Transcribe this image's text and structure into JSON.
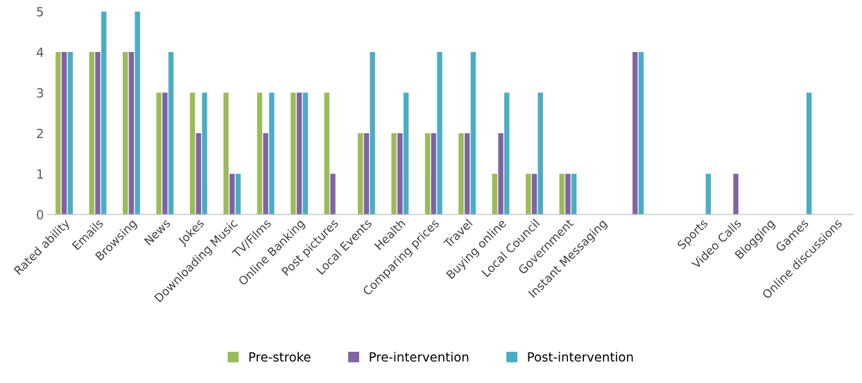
{
  "chart_data": {
    "type": "bar",
    "categories": [
      "Rated ability",
      "Emails",
      "Browsing",
      "News",
      "Jokes",
      "Downloading Music",
      "TV/Films",
      "Online Banking",
      "Post pictures",
      "Local Events",
      "Health",
      "Comparing prices",
      "Travel",
      "Buying online",
      "Local Council",
      "Government",
      "Instant Messaging",
      null,
      null,
      "Sports",
      "Video Calls",
      "Blogging",
      "Games",
      "Online discussions"
    ],
    "series": [
      {
        "name": "Pre-stroke",
        "color": "#9bbb59",
        "values": [
          4,
          4,
          4,
          3,
          3,
          3,
          3,
          3,
          3,
          2,
          2,
          2,
          2,
          1,
          1,
          1,
          0,
          0,
          0,
          0,
          0,
          0,
          0,
          0
        ]
      },
      {
        "name": "Pre-intervention",
        "color": "#8064a2",
        "values": [
          4,
          4,
          4,
          3,
          2,
          1,
          2,
          3,
          1,
          2,
          2,
          2,
          2,
          2,
          1,
          1,
          0,
          4,
          0,
          0,
          1,
          0,
          0,
          0
        ]
      },
      {
        "name": "Post-intervention",
        "color": "#4bacc6",
        "values": [
          4,
          5,
          5,
          4,
          3,
          1,
          3,
          3,
          0,
          4,
          3,
          4,
          4,
          3,
          3,
          1,
          0,
          4,
          0,
          1,
          0,
          0,
          3,
          0
        ]
      }
    ],
    "ylim": [
      0,
      5
    ],
    "yticks": [
      0,
      1,
      2,
      3,
      4,
      5
    ],
    "grid": false,
    "legend": "bottom"
  }
}
